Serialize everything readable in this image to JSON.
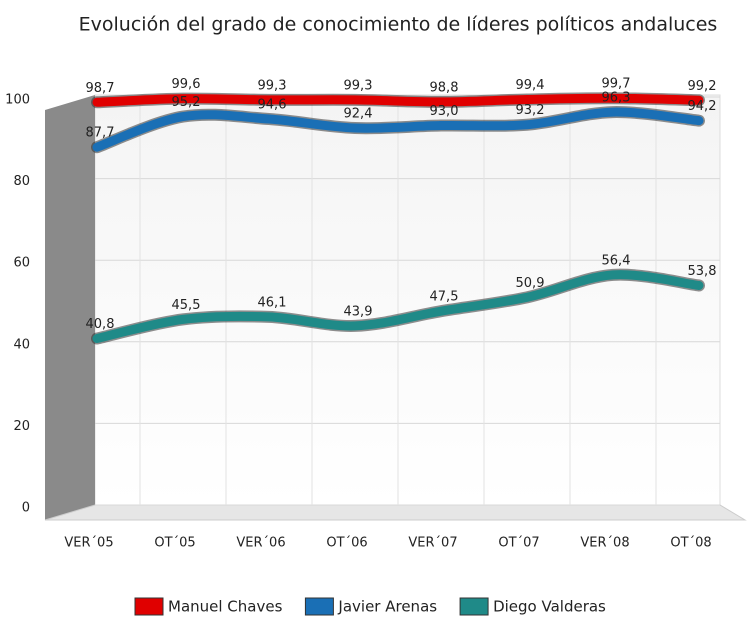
{
  "chart_data": {
    "type": "line",
    "title": "Evolución del grado de conocimiento de líderes políticos andaluces",
    "categories": [
      "VER´05",
      "OT´05",
      "VER´06",
      "OT´06",
      "VER´07",
      "OT´07",
      "VER´08",
      "OT´08"
    ],
    "ylim": [
      0,
      100
    ],
    "yticks": [
      0,
      20,
      40,
      60,
      80,
      100
    ],
    "grid": true,
    "legend": "bottom",
    "series": [
      {
        "name": "Manuel Chaves",
        "color": "#e00000",
        "values": [
          98.7,
          99.6,
          99.3,
          99.3,
          98.8,
          99.4,
          99.7,
          99.2
        ],
        "value_labels": [
          "98,7",
          "99,6",
          "99,3",
          "99,3",
          "98,8",
          "99,4",
          "99,7",
          "99,2"
        ]
      },
      {
        "name": "Javier Arenas",
        "color": "#1a6fb5",
        "values": [
          87.7,
          95.2,
          94.6,
          92.4,
          93.0,
          93.2,
          96.3,
          94.2
        ],
        "value_labels": [
          "87,7",
          "95,2",
          "94,6",
          "92,4",
          "93,0",
          "93,2",
          "96,3",
          "94,2"
        ]
      },
      {
        "name": "Diego Valderas",
        "color": "#1f8a88",
        "values": [
          40.8,
          45.5,
          46.1,
          43.9,
          47.5,
          50.9,
          56.4,
          53.8
        ],
        "value_labels": [
          "40,8",
          "45,5",
          "46,1",
          "43,9",
          "47,5",
          "50,9",
          "56,4",
          "53,8"
        ]
      }
    ]
  }
}
